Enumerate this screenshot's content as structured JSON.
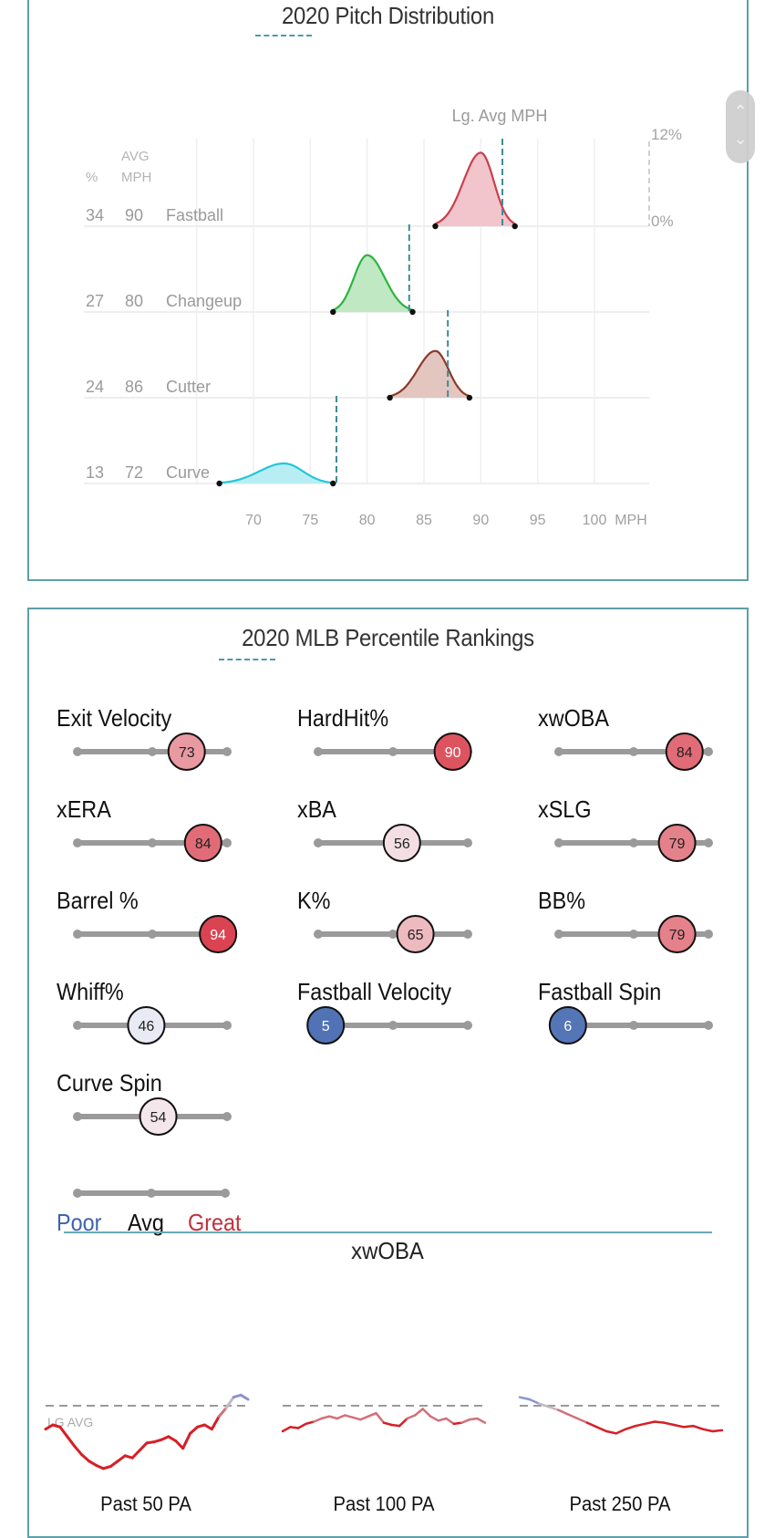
{
  "pitch_panel": {
    "title": "2020 Pitch Distribution",
    "scroll_up": "^",
    "scroll_down": "v"
  },
  "percentile_panel": {
    "title": "2020 MLB Percentile Rankings",
    "legend": {
      "poor": "Poor",
      "avg": "Avg",
      "great": "Great"
    },
    "colors": {
      "poor": "#3e64ad",
      "avg": "#111111",
      "great": "#c0313d"
    },
    "metrics": [
      {
        "label": "Exit Velocity",
        "percentile": 73
      },
      {
        "label": "HardHit%",
        "percentile": 90
      },
      {
        "label": "xwOBA",
        "percentile": 84
      },
      {
        "label": "xERA",
        "percentile": 84
      },
      {
        "label": "xBA",
        "percentile": 56
      },
      {
        "label": "xSLG",
        "percentile": 79
      },
      {
        "label": "Barrel %",
        "percentile": 94
      },
      {
        "label": "K%",
        "percentile": 65
      },
      {
        "label": "BB%",
        "percentile": 79
      },
      {
        "label": "Whiff%",
        "percentile": 46
      },
      {
        "label": "Fastball Velocity",
        "percentile": 5
      },
      {
        "label": "Fastball Spin",
        "percentile": 6
      },
      {
        "label": "Curve Spin",
        "percentile": 54
      }
    ]
  },
  "rolling": {
    "title": "xwOBA",
    "lg_avg_label": "LG AVG",
    "charts": [
      {
        "label": "Past 50 PA"
      },
      {
        "label": "Past 100 PA"
      },
      {
        "label": "Past 250 PA"
      }
    ]
  },
  "chart_data": [
    {
      "type": "area",
      "title": "2020 Pitch Distribution",
      "xlabel": "MPH",
      "xlim": [
        65,
        102
      ],
      "x_ticks": [
        70,
        75,
        80,
        85,
        90,
        95,
        100
      ],
      "x_unit_label": "MPH",
      "y_scale_labels": [
        "12%",
        "0%"
      ],
      "y_scale_range_pct": [
        0,
        12
      ],
      "column_headers": {
        "pct": "%",
        "avg_top": "AVG",
        "avg_bottom": "MPH"
      },
      "lg_avg_label": "Lg. Avg MPH",
      "grid": true,
      "series": [
        {
          "name": "Fastball",
          "pct": 34,
          "avg_mph": 90,
          "min_mph": 86,
          "max_mph": 93,
          "peak_mph": 90,
          "peak_pct": 11,
          "lg_avg_mph": 91.9,
          "color": "#c8404f",
          "fill": "#f2c4cb"
        },
        {
          "name": "Changeup",
          "pct": 27,
          "avg_mph": 80,
          "min_mph": 77,
          "max_mph": 84,
          "peak_mph": 80,
          "peak_pct": 8.5,
          "lg_avg_mph": 83.7,
          "color": "#2db43f",
          "fill": "#bfe8c3"
        },
        {
          "name": "Cutter",
          "pct": 24,
          "avg_mph": 86,
          "min_mph": 82,
          "max_mph": 89,
          "peak_mph": 86,
          "peak_pct": 7,
          "lg_avg_mph": 87.1,
          "color": "#8b3a2a",
          "fill": "#e3c6bf"
        },
        {
          "name": "Curve",
          "pct": 13,
          "avg_mph": 72,
          "min_mph": 67,
          "max_mph": 77,
          "peak_mph": 72.7,
          "peak_pct": 3,
          "lg_avg_mph": 77.3,
          "color": "#25c6d8",
          "fill": "#b8eef3"
        }
      ]
    },
    {
      "type": "line",
      "title": "xwOBA",
      "annotation": "LG AVG",
      "baseline_label": "LG AVG",
      "series": [
        {
          "name": "Past 50 PA",
          "values": [
            0.3,
            0.304,
            0.302,
            0.293,
            0.284,
            0.276,
            0.27,
            0.266,
            0.263,
            0.265,
            0.27,
            0.275,
            0.273,
            0.28,
            0.287,
            0.288,
            0.29,
            0.293,
            0.289,
            0.282,
            0.296,
            0.302,
            0.304,
            0.3,
            0.312,
            0.32,
            0.33,
            0.332,
            0.328
          ],
          "baseline": 0.322
        },
        {
          "name": "Past 100 PA",
          "values": [
            0.298,
            0.302,
            0.301,
            0.305,
            0.307,
            0.31,
            0.312,
            0.31,
            0.313,
            0.311,
            0.309,
            0.312,
            0.315,
            0.306,
            0.304,
            0.303,
            0.31,
            0.313,
            0.319,
            0.312,
            0.308,
            0.31,
            0.305,
            0.306,
            0.309,
            0.31,
            0.306
          ],
          "baseline": 0.322
        },
        {
          "name": "Past 250 PA",
          "values": [
            0.33,
            0.328,
            0.324,
            0.321,
            0.318,
            0.314,
            0.31,
            0.306,
            0.302,
            0.298,
            0.296,
            0.3,
            0.303,
            0.305,
            0.307,
            0.306,
            0.304,
            0.302,
            0.303,
            0.3,
            0.298,
            0.299
          ],
          "baseline": 0.322
        }
      ]
    }
  ]
}
